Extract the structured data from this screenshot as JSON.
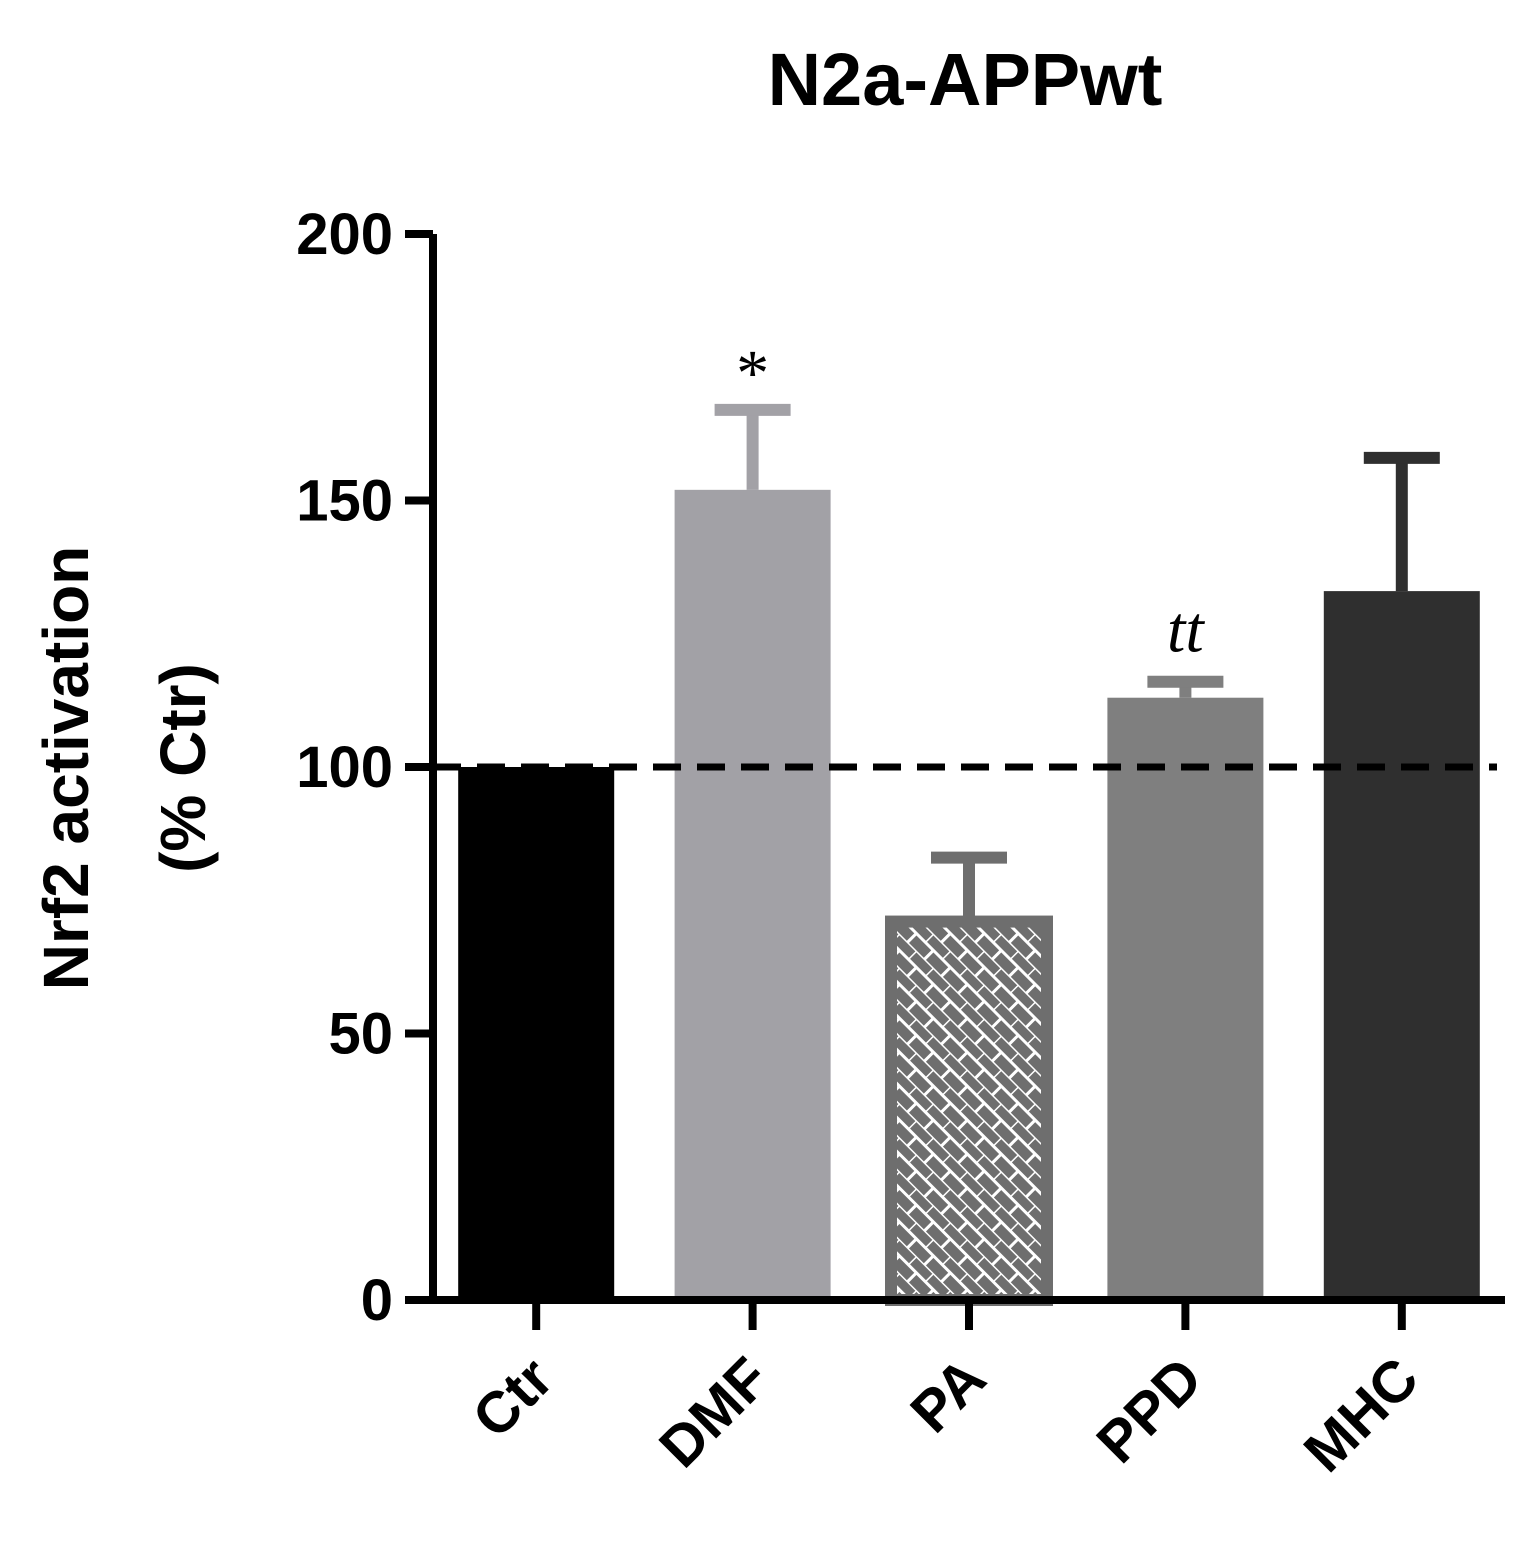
{
  "chart_data": {
    "type": "bar",
    "title": "N2a-APPwt",
    "ylabel_line1": "Nrf2 activation",
    "ylabel_line2": "(% Ctr)",
    "xlabel": "",
    "categories": [
      "Ctr",
      "DMF",
      "PA",
      "PPD",
      "MHC"
    ],
    "values": [
      100,
      152,
      71,
      113,
      133
    ],
    "error": [
      0,
      15,
      12,
      3,
      25
    ],
    "annotations": [
      "",
      "*",
      "",
      "tt",
      ""
    ],
    "ylim": [
      0,
      200
    ],
    "yticks": [
      "0",
      "50",
      "100",
      "150",
      "200"
    ],
    "reference_line": 100,
    "grid": false,
    "legend": "none",
    "colors": [
      "#000000",
      "#a2a1a6",
      "#6e6e6e",
      "#7f7f7f",
      "#2f2f2f"
    ],
    "hatched": [
      false,
      false,
      true,
      false,
      false
    ]
  }
}
